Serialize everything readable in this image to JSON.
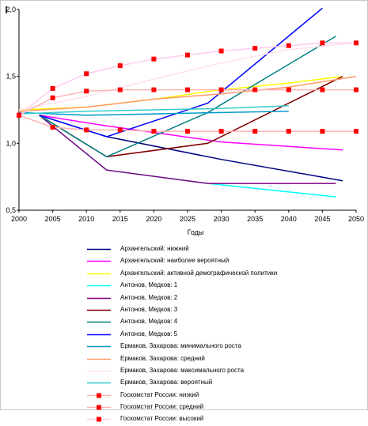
{
  "chart_data": {
    "type": "line",
    "xlabel": "Годы",
    "ylabel": "",
    "xlim": [
      2000,
      2050
    ],
    "ylim": [
      0.5,
      2.0
    ],
    "x_ticks": [
      "2000",
      "2005",
      "2010",
      "2015",
      "2020",
      "2025",
      "2030",
      "2035",
      "2040",
      "2045",
      "2050"
    ],
    "y_ticks": [
      "0,5",
      "1,0",
      "1,5",
      "2,0"
    ],
    "y_tick_values": [
      0.5,
      1.0,
      1.5,
      2.0
    ],
    "grid": "none",
    "legend_position": "bottom",
    "series": [
      {
        "name": "Архангельский:  нижний",
        "color": "#000080",
        "marker": "none",
        "points": [
          [
            2003,
            1.21
          ],
          [
            2013,
            1.05
          ],
          [
            2030,
            0.88
          ],
          [
            2048,
            0.72
          ]
        ]
      },
      {
        "name": "Архангельский:  наиболее вероятный",
        "color": "#ff00ff",
        "marker": "none",
        "points": [
          [
            2003,
            1.21
          ],
          [
            2013,
            1.13
          ],
          [
            2030,
            1.01
          ],
          [
            2048,
            0.95
          ]
        ]
      },
      {
        "name": "Архангельский:  активной демографической политики",
        "color": "#ffff00",
        "marker": "none",
        "points": [
          [
            2000,
            1.25
          ],
          [
            2010,
            1.27
          ],
          [
            2020,
            1.33
          ],
          [
            2030,
            1.4
          ],
          [
            2040,
            1.45
          ],
          [
            2048,
            1.5
          ]
        ]
      },
      {
        "name": "Антонов, Медков:  1",
        "color": "#00ffff",
        "marker": "none",
        "points": [
          [
            2003,
            1.21
          ],
          [
            2013,
            0.8
          ],
          [
            2028,
            0.7
          ],
          [
            2047,
            0.6
          ]
        ]
      },
      {
        "name": "Антонов, Медков:  2",
        "color": "#800080",
        "marker": "none",
        "points": [
          [
            2003,
            1.21
          ],
          [
            2013,
            0.8
          ],
          [
            2028,
            0.7
          ],
          [
            2047,
            0.7
          ]
        ]
      },
      {
        "name": "Антонов, Медков:  3",
        "color": "#800000",
        "marker": "none",
        "points": [
          [
            2003,
            1.21
          ],
          [
            2013,
            0.9
          ],
          [
            2028,
            1.0
          ],
          [
            2048,
            1.5
          ]
        ]
      },
      {
        "name": "Антонов, Медков:  4",
        "color": "#008080",
        "marker": "none",
        "points": [
          [
            2003,
            1.21
          ],
          [
            2013,
            0.9
          ],
          [
            2028,
            1.23
          ],
          [
            2047,
            1.8
          ]
        ]
      },
      {
        "name": "Антонов, Медков:  5",
        "color": "#0000ff",
        "marker": "none",
        "points": [
          [
            2003,
            1.21
          ],
          [
            2013,
            1.05
          ],
          [
            2028,
            1.3
          ],
          [
            2045,
            2.01
          ]
        ]
      },
      {
        "name": "Ермаков, Захарова:  минимального роста",
        "color": "#0099cc",
        "marker": "none",
        "points": [
          [
            2000,
            1.23
          ],
          [
            2010,
            1.21
          ],
          [
            2020,
            1.22
          ],
          [
            2030,
            1.23
          ],
          [
            2040,
            1.24
          ]
        ]
      },
      {
        "name": "Ермаков, Захарова:  средний",
        "color": "#ff9966",
        "marker": "none",
        "points": [
          [
            2000,
            1.24
          ],
          [
            2010,
            1.27
          ],
          [
            2020,
            1.33
          ],
          [
            2030,
            1.37
          ],
          [
            2040,
            1.42
          ],
          [
            2050,
            1.5
          ]
        ]
      },
      {
        "name": "Ермаков, Захарова:  максимального роста",
        "color": "#ffe0f0",
        "marker": "none",
        "points": [
          [
            2000,
            1.25
          ],
          [
            2010,
            1.35
          ],
          [
            2020,
            1.48
          ],
          [
            2030,
            1.6
          ],
          [
            2040,
            1.7
          ],
          [
            2050,
            1.75
          ]
        ]
      },
      {
        "name": "Ермаков, Захарова:  вероятный",
        "color": "#33cccc",
        "marker": "none",
        "points": [
          [
            2000,
            1.22
          ],
          [
            2010,
            1.24
          ],
          [
            2020,
            1.25
          ],
          [
            2030,
            1.26
          ],
          [
            2040,
            1.28
          ]
        ]
      },
      {
        "name": "Госкомстат России:  низкий",
        "color": "#ffb3b3",
        "marker": "square",
        "points": [
          [
            2000,
            1.21
          ],
          [
            2005,
            1.12
          ],
          [
            2010,
            1.1
          ],
          [
            2015,
            1.1
          ],
          [
            2020,
            1.09
          ],
          [
            2025,
            1.09
          ],
          [
            2030,
            1.09
          ],
          [
            2035,
            1.09
          ],
          [
            2040,
            1.09
          ],
          [
            2045,
            1.09
          ],
          [
            2050,
            1.09
          ]
        ]
      },
      {
        "name": "Госкомстат России:  средний",
        "color": "#ffb3b3",
        "marker": "square",
        "points": [
          [
            2000,
            1.21
          ],
          [
            2005,
            1.34
          ],
          [
            2010,
            1.39
          ],
          [
            2015,
            1.4
          ],
          [
            2020,
            1.4
          ],
          [
            2025,
            1.4
          ],
          [
            2030,
            1.4
          ],
          [
            2035,
            1.4
          ],
          [
            2040,
            1.4
          ],
          [
            2045,
            1.4
          ],
          [
            2050,
            1.4
          ]
        ]
      },
      {
        "name": "Госкомстат России:  высокий",
        "color": "#ffccee",
        "marker": "square",
        "points": [
          [
            2000,
            1.21
          ],
          [
            2005,
            1.41
          ],
          [
            2010,
            1.52
          ],
          [
            2015,
            1.58
          ],
          [
            2020,
            1.63
          ],
          [
            2025,
            1.66
          ],
          [
            2030,
            1.69
          ],
          [
            2035,
            1.71
          ],
          [
            2040,
            1.73
          ],
          [
            2045,
            1.75
          ],
          [
            2050,
            1.75
          ]
        ]
      }
    ],
    "marker_color": "#ff0000"
  }
}
